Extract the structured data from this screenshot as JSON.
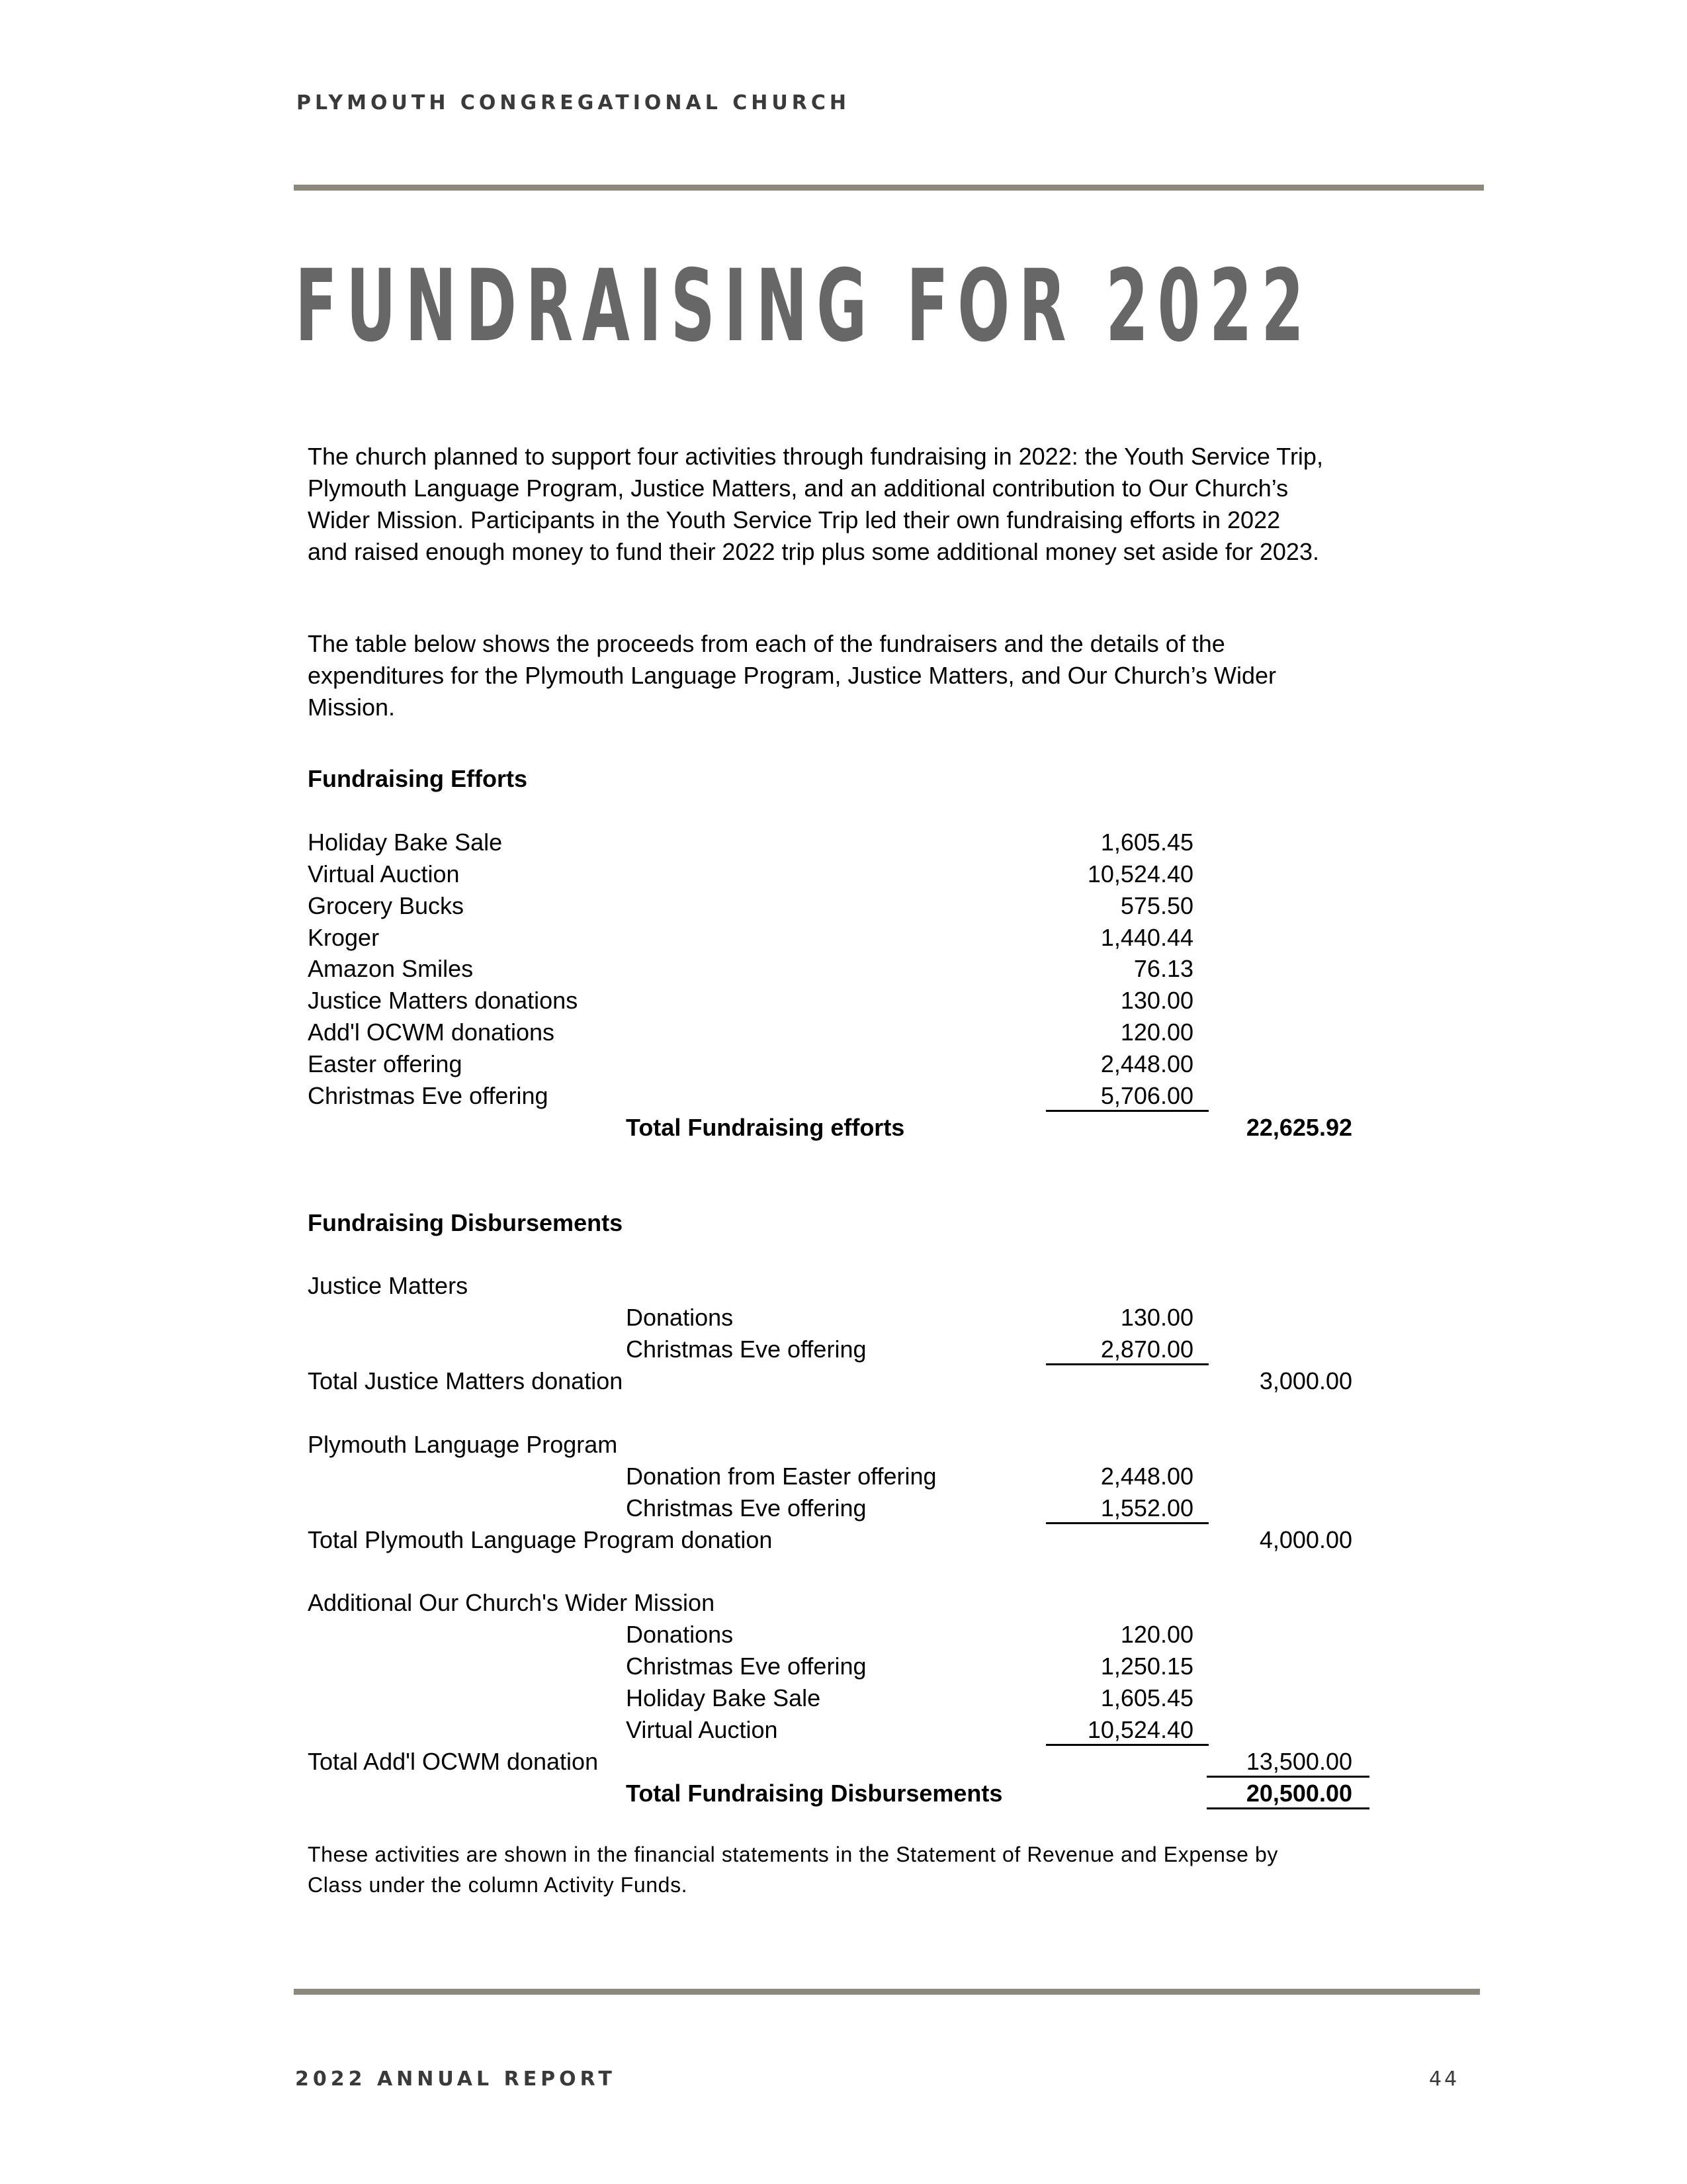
{
  "header": {
    "organization": "PLYMOUTH CONGREGATIONAL CHURCH"
  },
  "title": "FUNDRAISING FOR 2022",
  "intro_lines": [
    "The church planned to support four activities through fundraising in 2022: the Youth Service Trip,",
    "Plymouth Language Program, Justice Matters, and an additional contribution to Our Church’s",
    "Wider Mission.  Participants in the Youth Service Trip led their own fundraising efforts in 2022",
    "and raised enough money to fund their 2022 trip plus some additional money set aside for 2023."
  ],
  "table_intro_lines": [
    "The table below shows the proceeds from each of the fundraisers and the details of the",
    "expenditures for the Plymouth Language Program, Justice Matters, and Our Church’s Wider",
    "Mission."
  ],
  "table_rows": [
    {
      "label": "Fundraising Efforts",
      "bold": true
    },
    {},
    {
      "label": "Holiday Bake Sale",
      "amount": "1,605.45"
    },
    {
      "label": "Virtual Auction",
      "amount": "10,524.40"
    },
    {
      "label": "Grocery Bucks",
      "amount": "575.50"
    },
    {
      "label": "Kroger",
      "amount": "1,440.44"
    },
    {
      "label": "Amazon Smiles",
      "amount": "76.13"
    },
    {
      "label": "Justice Matters donations",
      "amount": "130.00"
    },
    {
      "label": "Add'l OCWM donations",
      "amount": "120.00"
    },
    {
      "label": "Easter offering",
      "amount": "2,448.00"
    },
    {
      "label": "Christmas Eve offering",
      "amount": "5,706.00",
      "amount_underlined": true
    },
    {
      "label": "Total Fundraising efforts",
      "indent": true,
      "bold": true,
      "total": "22,625.92"
    },
    {},
    {},
    {
      "label": "Fundraising Disbursements",
      "bold": true
    },
    {},
    {
      "label": "Justice Matters"
    },
    {
      "label": "Donations",
      "indent": true,
      "amount": "130.00"
    },
    {
      "label": "Christmas Eve offering",
      "indent": true,
      "amount": "2,870.00",
      "amount_underlined": true
    },
    {
      "label": "Total Justice Matters donation",
      "total": "3,000.00"
    },
    {},
    {
      "label": "Plymouth Language Program"
    },
    {
      "label": "Donation from Easter offering",
      "indent": true,
      "amount": "2,448.00"
    },
    {
      "label": "Christmas Eve offering",
      "indent": true,
      "amount": "1,552.00",
      "amount_underlined": true
    },
    {
      "label": "Total Plymouth Language Program donation",
      "total": "4,000.00"
    },
    {},
    {
      "label": "Additional Our Church's Wider Mission"
    },
    {
      "label": "Donations",
      "indent": true,
      "amount": "120.00"
    },
    {
      "label": "Christmas Eve offering",
      "indent": true,
      "amount": "1,250.15"
    },
    {
      "label": "Holiday Bake Sale",
      "indent": true,
      "amount": "1,605.45"
    },
    {
      "label": "Virtual Auction",
      "indent": true,
      "amount": "10,524.40",
      "amount_underlined": true
    },
    {
      "label": "Total Add'l OCWM donation",
      "total": "13,500.00",
      "total_underlined": true
    },
    {
      "label": "Total Fundraising Disbursements",
      "indent": true,
      "bold": true,
      "total": "20,500.00",
      "total_underlined": true
    }
  ],
  "note_lines": [
    "These activities are shown in the financial statements in the Statement of Revenue and Expense by",
    "Class under the column Activity Funds."
  ],
  "footer": {
    "report": "2022 ANNUAL REPORT",
    "page_number": "44"
  },
  "colors": {
    "rule": "#8c887c",
    "title": "#676767"
  }
}
